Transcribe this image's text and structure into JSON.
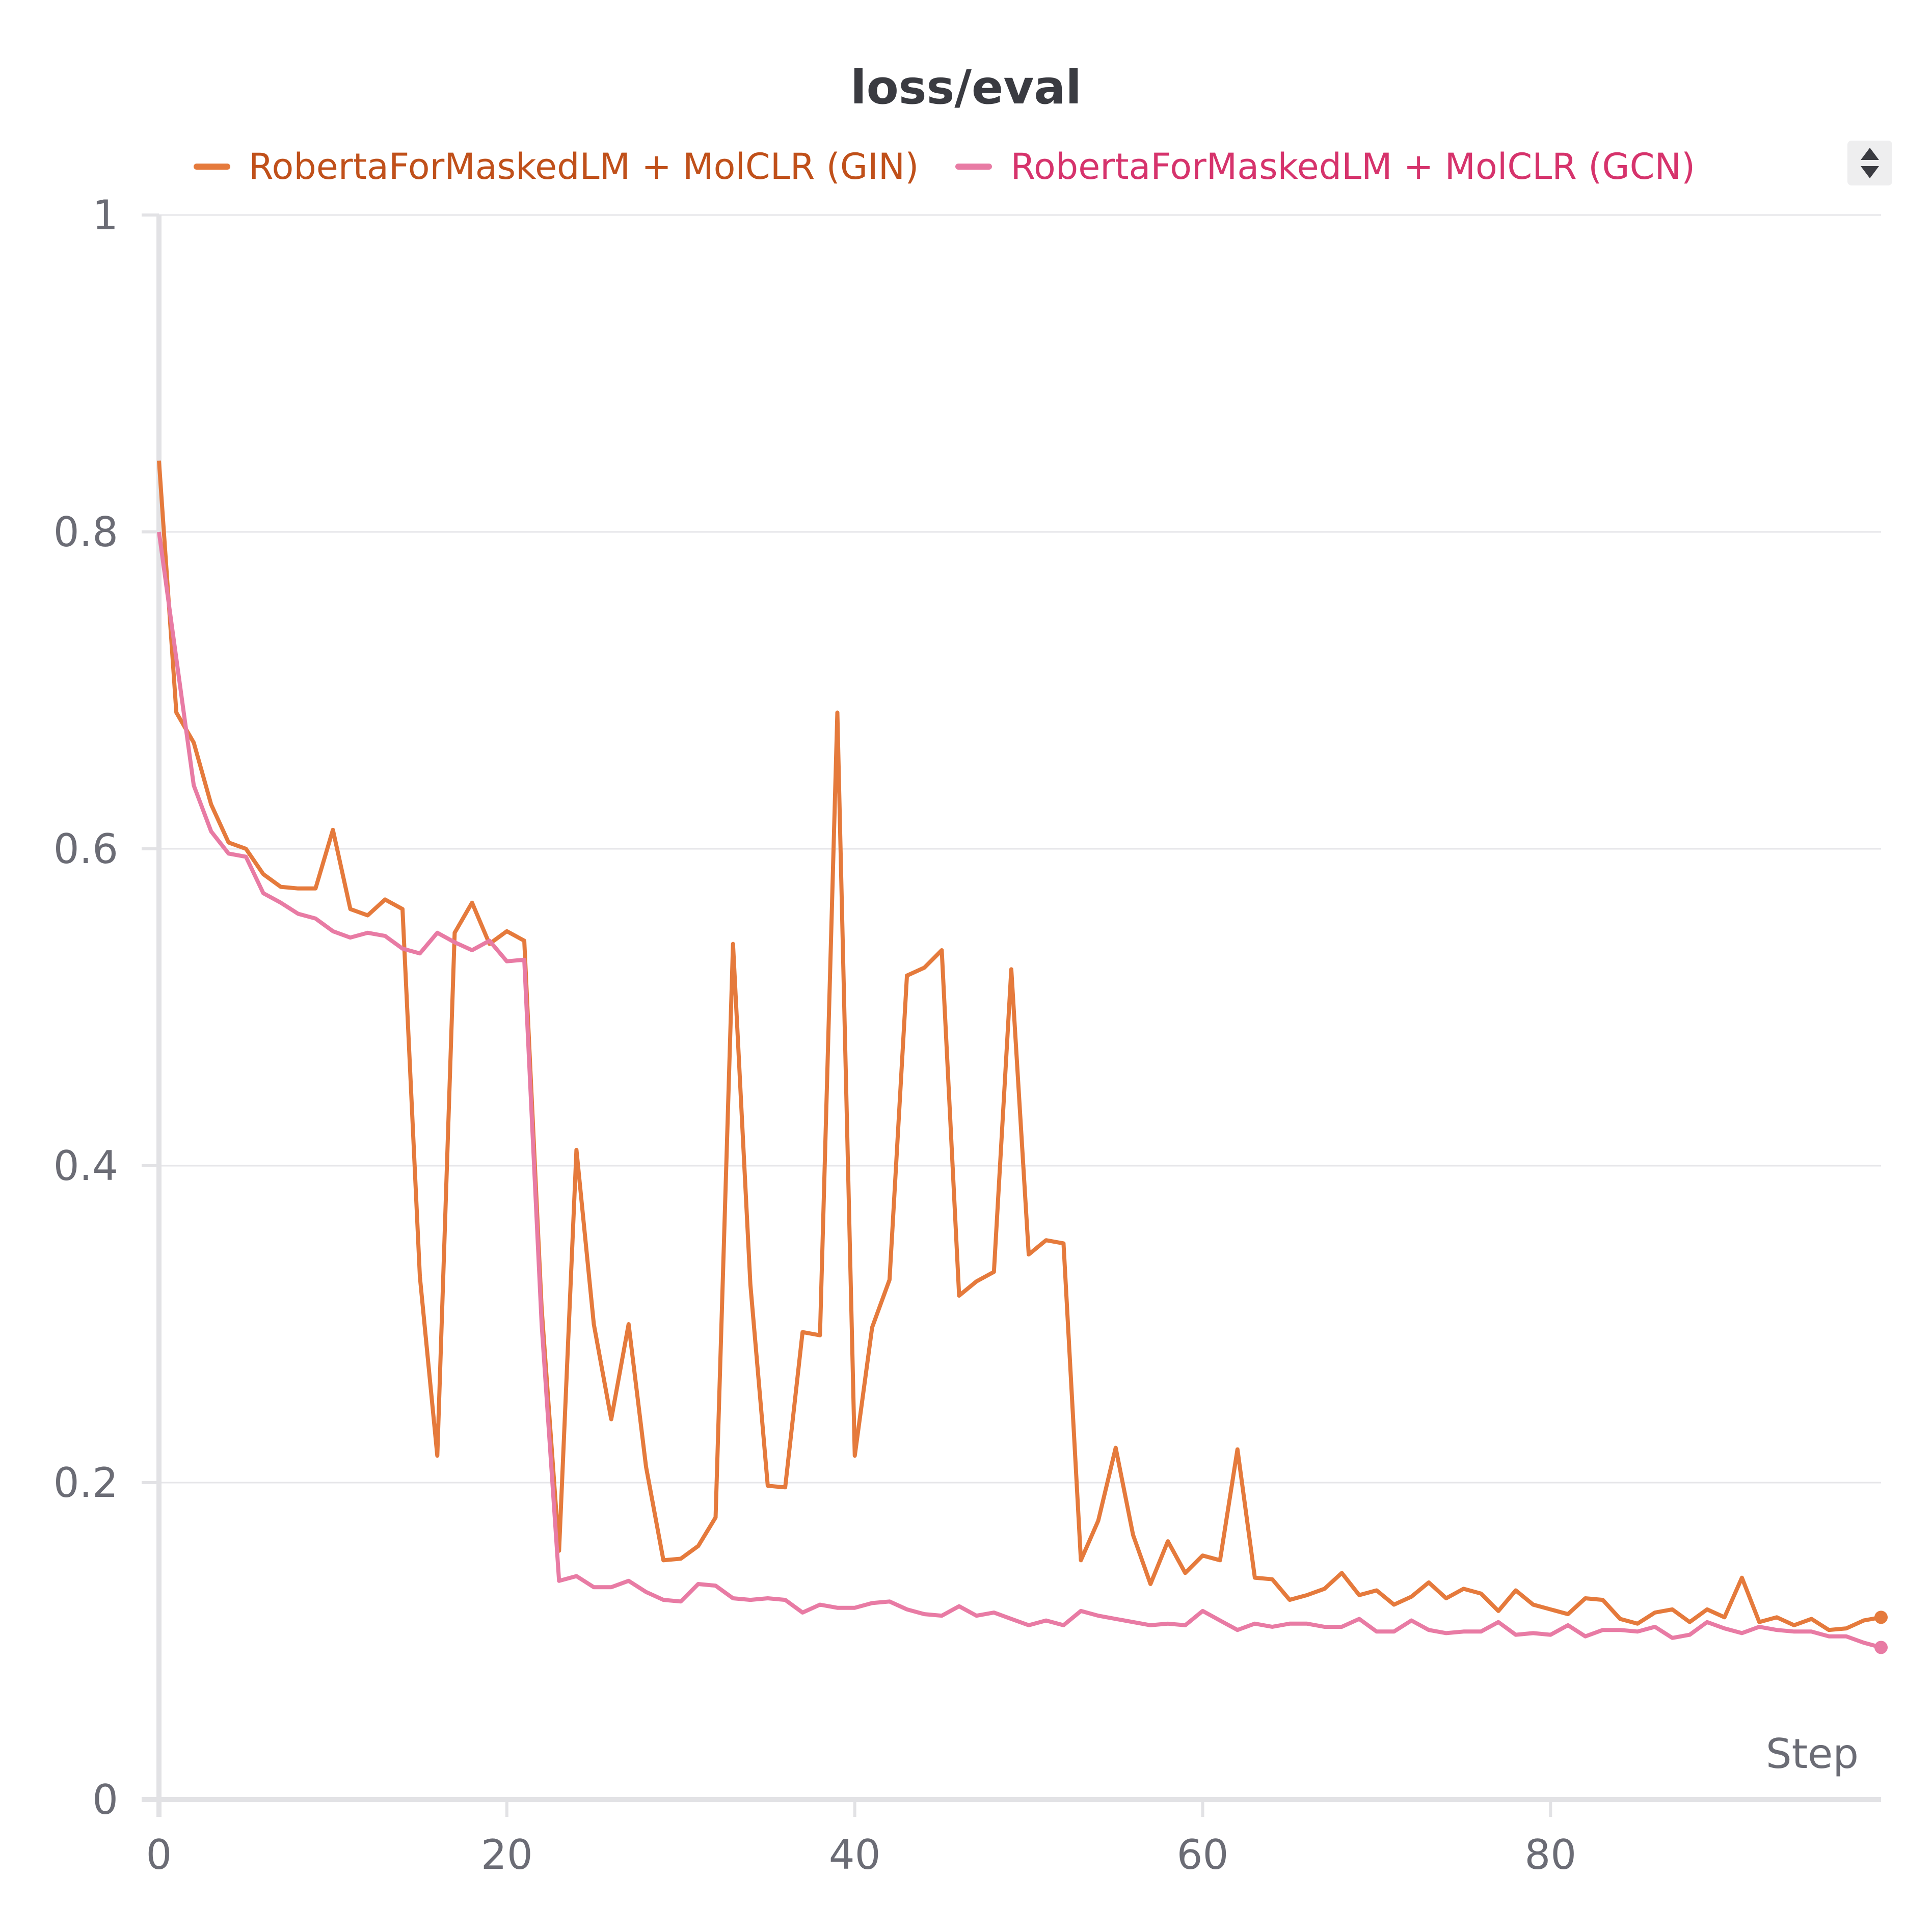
{
  "chart_data": {
    "type": "line",
    "title": "loss/eval",
    "xlabel": "Step",
    "ylabel": "",
    "xlim": [
      0,
      99
    ],
    "ylim": [
      0,
      1
    ],
    "x_ticks": [
      0,
      20,
      40,
      60,
      80
    ],
    "y_ticks": [
      0,
      0.2,
      0.4,
      0.6,
      0.8,
      1
    ],
    "y_tick_labels": [
      "0",
      "0.2",
      "0.4",
      "0.6",
      "0.8",
      "1"
    ],
    "grid": true,
    "legend_position": "top",
    "series": [
      {
        "name": "RobertaForMaskedLM + MolCLR (GIN)",
        "color": "#e57a3c",
        "label_color": "#c0501a",
        "values": [
          0.845,
          0.686,
          0.667,
          0.628,
          0.604,
          0.6,
          0.584,
          0.576,
          0.575,
          0.575,
          0.612,
          0.562,
          0.558,
          0.568,
          0.562,
          0.33,
          0.217,
          0.547,
          0.566,
          0.54,
          0.548,
          0.542,
          0.31,
          0.157,
          0.41,
          0.3,
          0.24,
          0.3,
          0.21,
          0.151,
          0.152,
          0.16,
          0.178,
          0.54,
          0.325,
          0.198,
          0.197,
          0.295,
          0.293,
          0.686,
          0.217,
          0.298,
          0.328,
          0.52,
          0.525,
          0.536,
          0.318,
          0.327,
          0.333,
          0.524,
          0.344,
          0.353,
          0.351,
          0.151,
          0.176,
          0.222,
          0.167,
          0.136,
          0.163,
          0.143,
          0.154,
          0.151,
          0.221,
          0.14,
          0.139,
          0.126,
          0.129,
          0.133,
          0.143,
          0.129,
          0.132,
          0.123,
          0.128,
          0.137,
          0.127,
          0.133,
          0.13,
          0.119,
          0.132,
          0.123,
          0.12,
          0.117,
          0.127,
          0.126,
          0.114,
          0.111,
          0.118,
          0.12,
          0.112,
          0.12,
          0.115,
          0.14,
          0.112,
          0.115,
          0.11,
          0.114,
          0.107,
          0.108,
          0.113,
          0.115
        ],
        "end_marker": true
      },
      {
        "name": "RobertaForMaskedLM + MolCLR (GCN)",
        "color": "#e87ba4",
        "label_color": "#d6336c",
        "values": [
          0.8,
          0.72,
          0.64,
          0.611,
          0.597,
          0.595,
          0.572,
          0.566,
          0.559,
          0.556,
          0.548,
          0.544,
          0.547,
          0.545,
          0.537,
          0.534,
          0.547,
          0.541,
          0.536,
          0.542,
          0.529,
          0.53,
          0.3,
          0.138,
          0.141,
          0.134,
          0.134,
          0.138,
          0.131,
          0.126,
          0.125,
          0.136,
          0.135,
          0.127,
          0.126,
          0.127,
          0.126,
          0.118,
          0.123,
          0.121,
          0.121,
          0.124,
          0.125,
          0.12,
          0.117,
          0.116,
          0.122,
          0.116,
          0.118,
          0.114,
          0.11,
          0.113,
          0.11,
          0.119,
          0.116,
          0.114,
          0.112,
          0.11,
          0.111,
          0.11,
          0.119,
          0.113,
          0.107,
          0.111,
          0.109,
          0.111,
          0.111,
          0.109,
          0.109,
          0.114,
          0.106,
          0.106,
          0.113,
          0.107,
          0.105,
          0.106,
          0.106,
          0.112,
          0.104,
          0.105,
          0.104,
          0.11,
          0.103,
          0.107,
          0.107,
          0.106,
          0.109,
          0.102,
          0.104,
          0.112,
          0.108,
          0.105,
          0.109,
          0.107,
          0.106,
          0.106,
          0.103,
          0.103,
          0.099,
          0.096
        ],
        "end_marker": true
      }
    ]
  }
}
